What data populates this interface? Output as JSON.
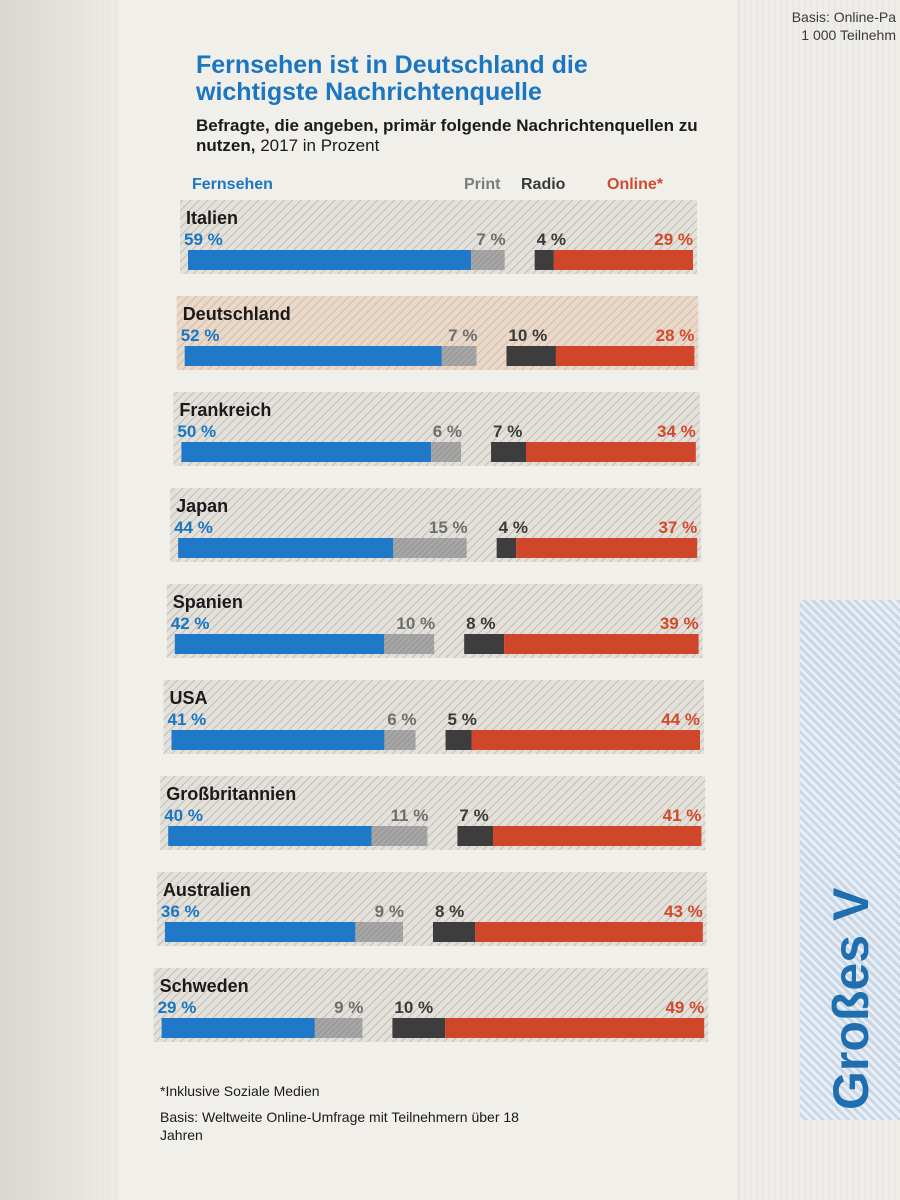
{
  "header": {
    "title": "Fernsehen ist in Deutschland die wichtigste Nachrichtenquelle",
    "subtitle_bold": "Befragte, die angeben, primär folgende Nachrichtenquellen zu nutzen,",
    "subtitle_rest": " 2017 in Prozent"
  },
  "background": {
    "corner_note_line1": "Basis: Online-Pa",
    "corner_note_line2": "1 000 Teilnehm",
    "side_word": "Großes V"
  },
  "legend": {
    "tv": "Fernsehen",
    "print": "Print",
    "radio": "Radio",
    "online": "Online*"
  },
  "colors": {
    "tv": "#1f78c8",
    "print": "#9e9e9e",
    "radio": "#3d3d3d",
    "online": "#d0462a",
    "tv_label": "#1b76c2",
    "online_label": "#d24a2c"
  },
  "chart_data": {
    "type": "bar",
    "stacked": true,
    "orientation": "horizontal",
    "unit": "%",
    "categories": [
      "Italien",
      "Deutschland",
      "Frankreich",
      "Japan",
      "Spanien",
      "USA",
      "Großbritannien",
      "Australien",
      "Schweden"
    ],
    "series": [
      {
        "name": "Fernsehen",
        "values": [
          59,
          52,
          50,
          44,
          42,
          41,
          40,
          36,
          29
        ]
      },
      {
        "name": "Print",
        "values": [
          7,
          7,
          6,
          15,
          10,
          6,
          11,
          9,
          9
        ]
      },
      {
        "name": "Radio",
        "values": [
          4,
          10,
          7,
          4,
          8,
          5,
          7,
          8,
          10
        ]
      },
      {
        "name": "Online*",
        "values": [
          29,
          28,
          34,
          37,
          39,
          44,
          41,
          43,
          49
        ]
      }
    ],
    "value_labels": [
      [
        "59 %",
        "7 %",
        "4 %",
        "29 %"
      ],
      [
        "52 %",
        "7 %",
        "10 %",
        "28 %"
      ],
      [
        "50 %",
        "6 %",
        "7 %",
        "34 %"
      ],
      [
        "44 %",
        "15 %",
        "4 %",
        "37 %"
      ],
      [
        "42 %",
        "10 %",
        "8 %",
        "39 %"
      ],
      [
        "41 %",
        "6 %",
        "5 %",
        "44 %"
      ],
      [
        "40 %",
        "11 %",
        "7 %",
        "41 %"
      ],
      [
        "36 %",
        "9 %",
        "8 %",
        "43 %"
      ],
      [
        "29 %",
        "9 %",
        "10 %",
        "49 %"
      ]
    ]
  },
  "footnotes": {
    "asterisk": "*Inklusive Soziale Medien",
    "basis": "Basis: Weltweite Online-Umfrage mit Teilnehmern über 18 Jahren"
  }
}
